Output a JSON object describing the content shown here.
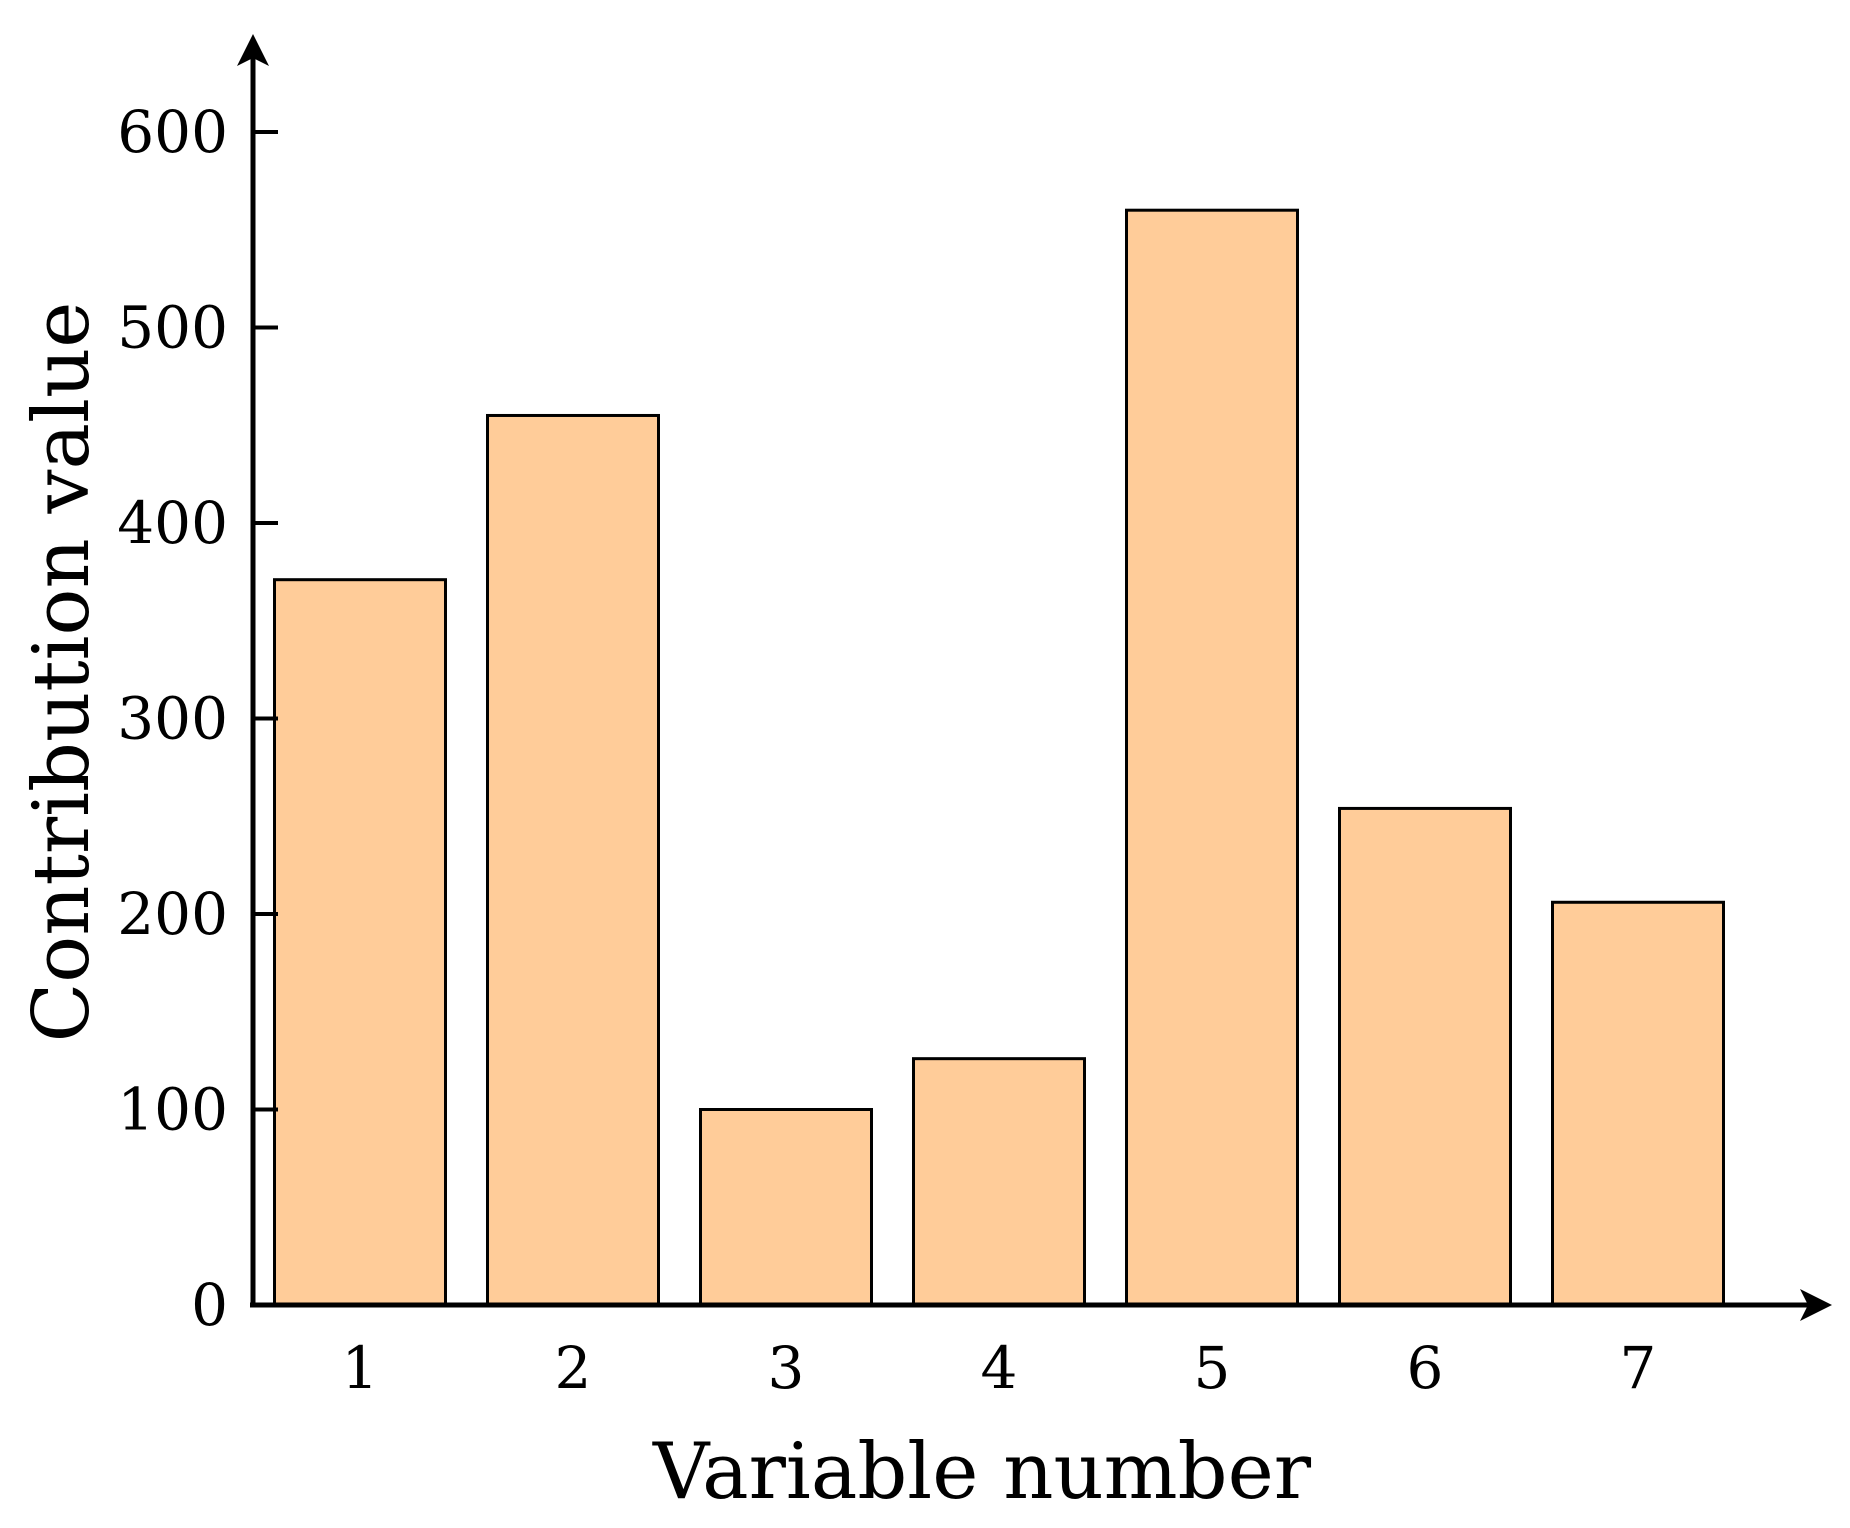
{
  "chart_data": {
    "type": "bar",
    "title": "",
    "xlabel": "Variable number",
    "ylabel": "Contribution value",
    "categories": [
      "1",
      "2",
      "3",
      "4",
      "5",
      "6",
      "7"
    ],
    "values": [
      371,
      455,
      100,
      126,
      560,
      254,
      206
    ],
    "ylim": [
      0,
      600
    ],
    "yticks": [
      "0",
      "100",
      "200",
      "300",
      "400",
      "500",
      "600"
    ],
    "grid": false,
    "legend": "none",
    "bar_color": "#FFCC99",
    "bar_edge_color": "#000000"
  }
}
